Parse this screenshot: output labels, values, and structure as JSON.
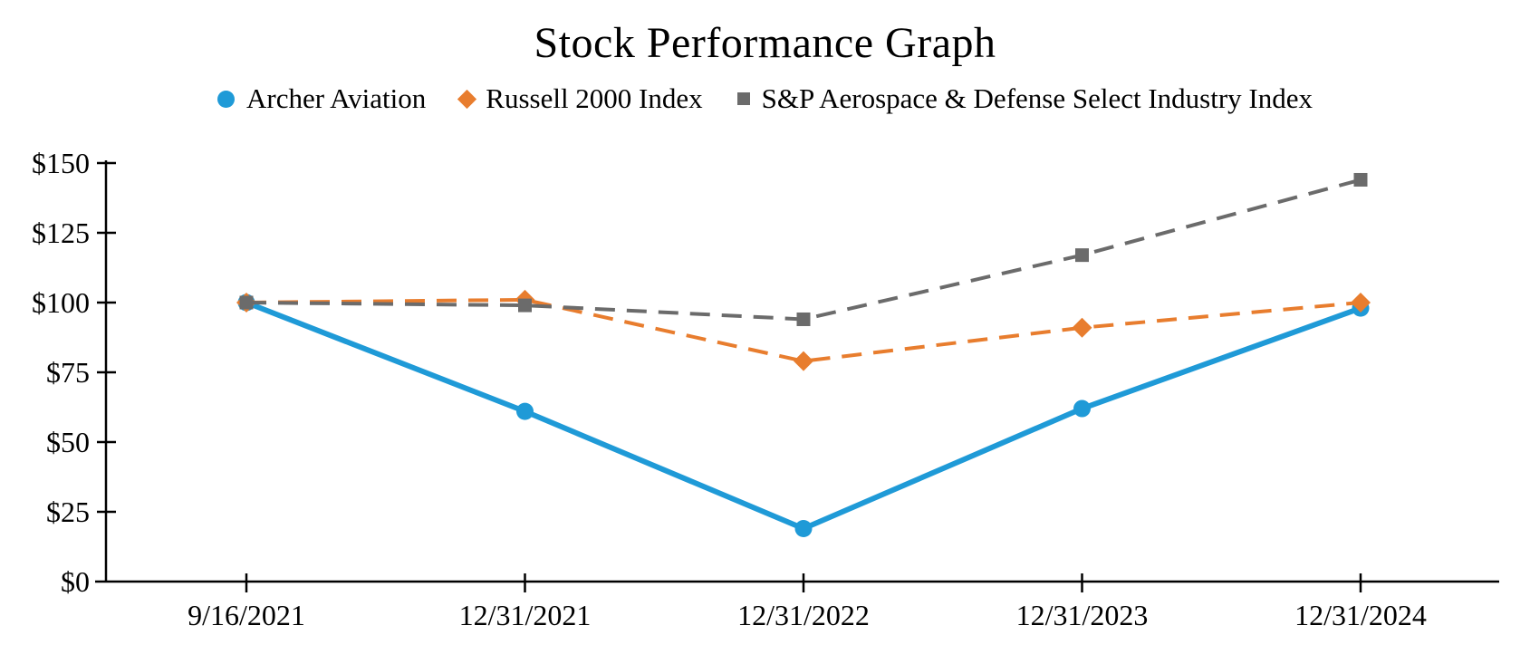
{
  "title": "Stock Performance Graph",
  "chart_data": {
    "type": "line",
    "title": "Stock Performance Graph",
    "categories": [
      "9/16/2021",
      "12/31/2021",
      "12/31/2022",
      "12/31/2023",
      "12/31/2024"
    ],
    "series": [
      {
        "name": "Archer Aviation",
        "values": [
          100,
          61,
          19,
          62,
          98
        ],
        "color": "#1f9ad7",
        "marker": "circle",
        "line_style": "solid"
      },
      {
        "name": "Russell 2000 Index",
        "values": [
          100,
          101,
          79,
          91,
          100
        ],
        "color": "#e87d2e",
        "marker": "diamond",
        "line_style": "dashed"
      },
      {
        "name": "S&P Aerospace & Defense Select Industry Index",
        "values": [
          100,
          99,
          94,
          117,
          144
        ],
        "color": "#6b6b6b",
        "marker": "square",
        "line_style": "dashed"
      }
    ],
    "xlabel": "",
    "ylabel": "",
    "ylim": [
      0,
      150
    ],
    "y_tick_values": [
      0,
      25,
      50,
      75,
      100,
      125,
      150
    ],
    "y_tick_labels": [
      "$0",
      "$25",
      "$50",
      "$75",
      "$100",
      "$125",
      "$150"
    ],
    "grid": false,
    "legend_position": "top",
    "background": "#ffffff",
    "axis_color": "#000000",
    "text_color": "#000000"
  }
}
